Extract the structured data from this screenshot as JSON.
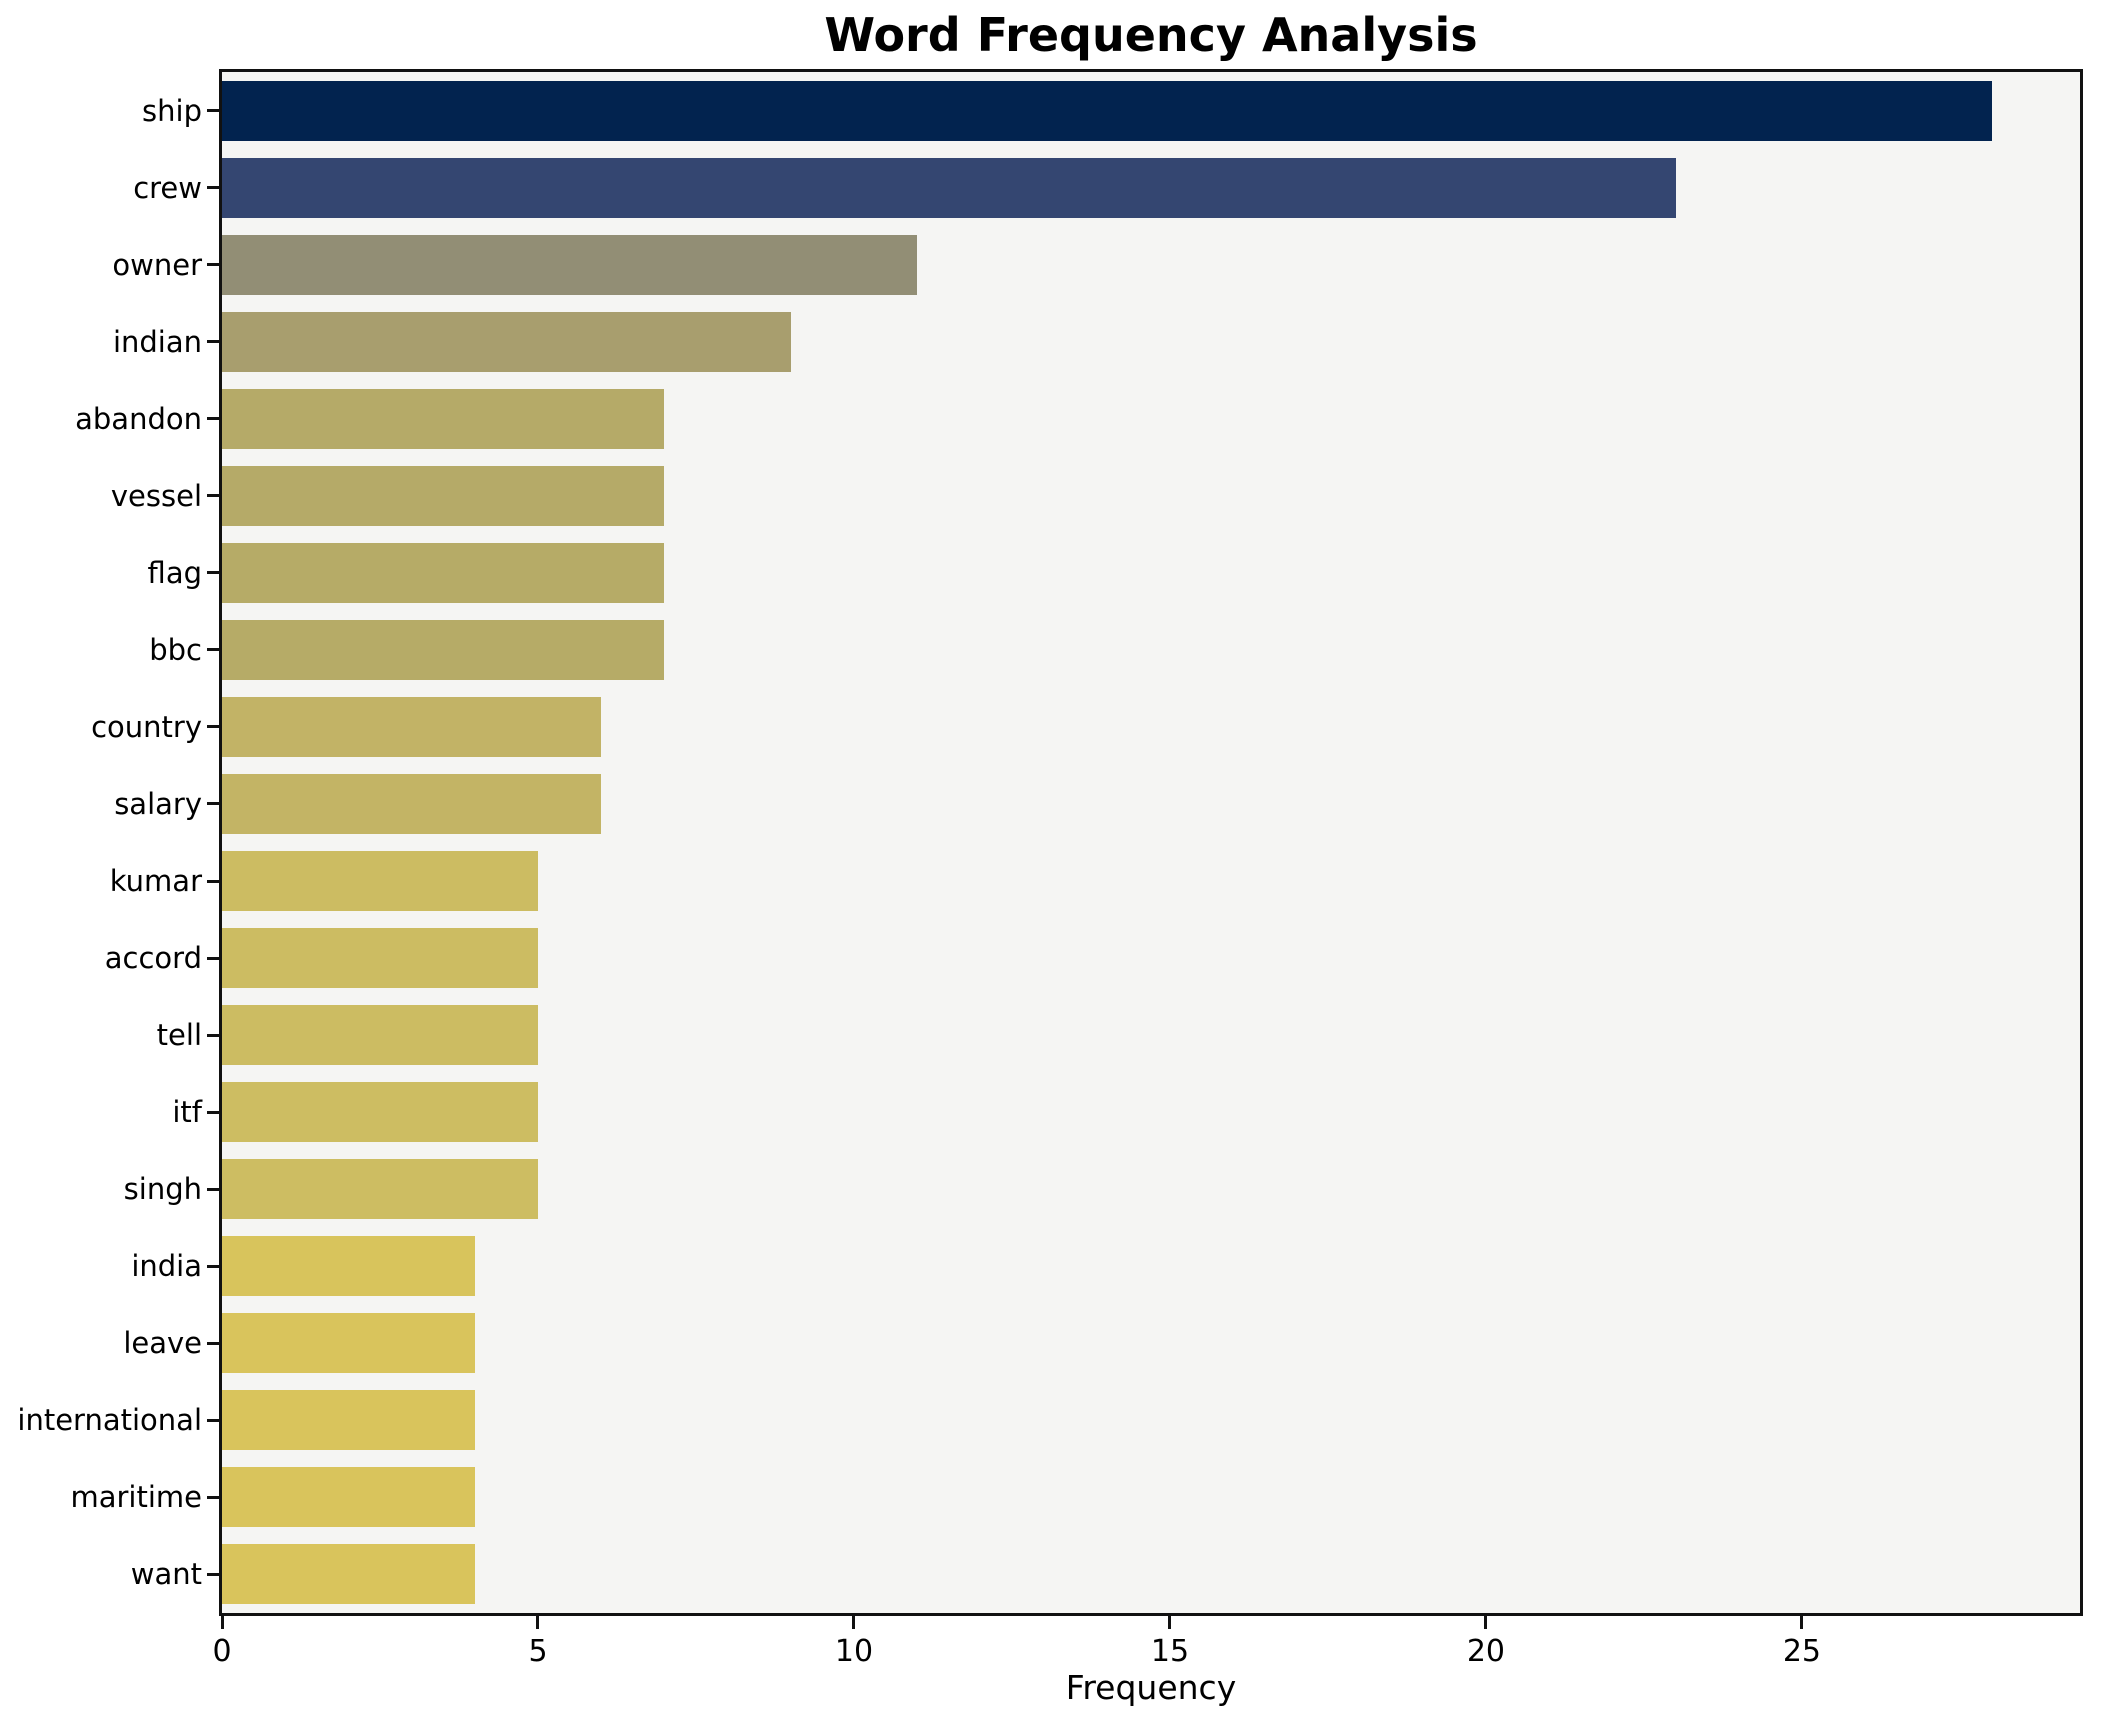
{
  "chart_data": {
    "type": "bar",
    "orientation": "horizontal",
    "title": "Word Frequency Analysis",
    "xlabel": "Frequency",
    "ylabel": "",
    "categories": [
      "ship",
      "crew",
      "owner",
      "indian",
      "abandon",
      "vessel",
      "flag",
      "bbc",
      "country",
      "salary",
      "kumar",
      "accord",
      "tell",
      "itf",
      "singh",
      "india",
      "leave",
      "international",
      "maritime",
      "want"
    ],
    "values": [
      28,
      23,
      11,
      9,
      7,
      7,
      7,
      7,
      6,
      6,
      5,
      5,
      5,
      5,
      5,
      4,
      4,
      4,
      4,
      4
    ],
    "bar_colors": [
      "#02234f",
      "#344671",
      "#928e75",
      "#a89e6e",
      "#b5aa68",
      "#b5aa68",
      "#b6ab67",
      "#b6ab67",
      "#c2b366",
      "#c3b465",
      "#ccbc62",
      "#ccbc62",
      "#ccbc62",
      "#cdbd62",
      "#cdbd62",
      "#d8c45c",
      "#d9c45c",
      "#d9c45c",
      "#d9c45c",
      "#d9c45c"
    ],
    "xlim": [
      0,
      29.4
    ],
    "xticks": [
      0,
      5,
      10,
      15,
      20,
      25
    ],
    "grid": false,
    "legend": "none",
    "plot_bg": "#f5f5f3",
    "fig_bg": "#ffffff",
    "spine_color": "#111111"
  }
}
